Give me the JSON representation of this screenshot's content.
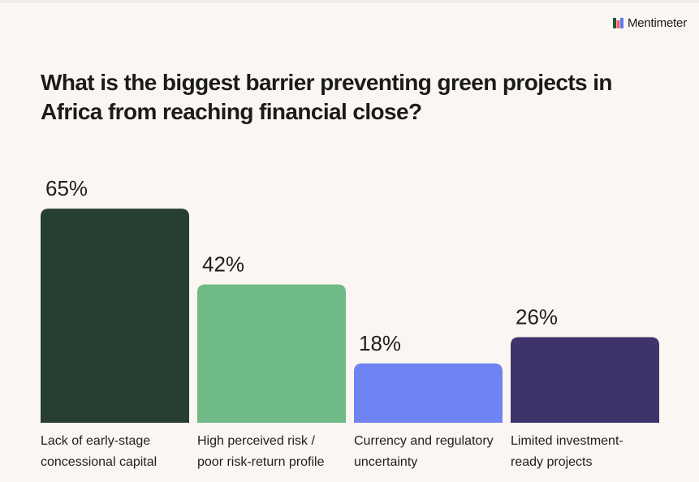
{
  "brand": {
    "name": "Mentimeter",
    "colors": [
      "#1b5e3b",
      "#ff5c6c",
      "#5b7cf5"
    ]
  },
  "question": "What is the biggest barrier preventing green projects in Africa from reaching financial close?",
  "chart_data": {
    "type": "bar",
    "title": "What is the biggest barrier preventing green projects in Africa from reaching financial close?",
    "categories": [
      "Lack of early-stage concessional capital",
      "High perceived risk / poor risk-return profile",
      "Currency and regulatory uncertainty",
      "Limited investment-ready projects"
    ],
    "category_lines": [
      [
        "Lack of early-stage",
        "concessional capital"
      ],
      [
        "High perceived risk /",
        "poor risk-return profile"
      ],
      [
        "Currency and regulatory",
        "uncertainty"
      ],
      [
        "Limited investment-",
        "ready projects"
      ]
    ],
    "values": [
      65,
      42,
      18,
      26
    ],
    "value_labels": [
      "65%",
      "42%",
      "18%",
      "26%"
    ],
    "colors": [
      "#263f30",
      "#6fba86",
      "#6f83f2",
      "#3e346b"
    ],
    "unit": "%",
    "ylim": [
      0,
      100
    ],
    "grid": false,
    "xlabel": "",
    "ylabel": ""
  }
}
